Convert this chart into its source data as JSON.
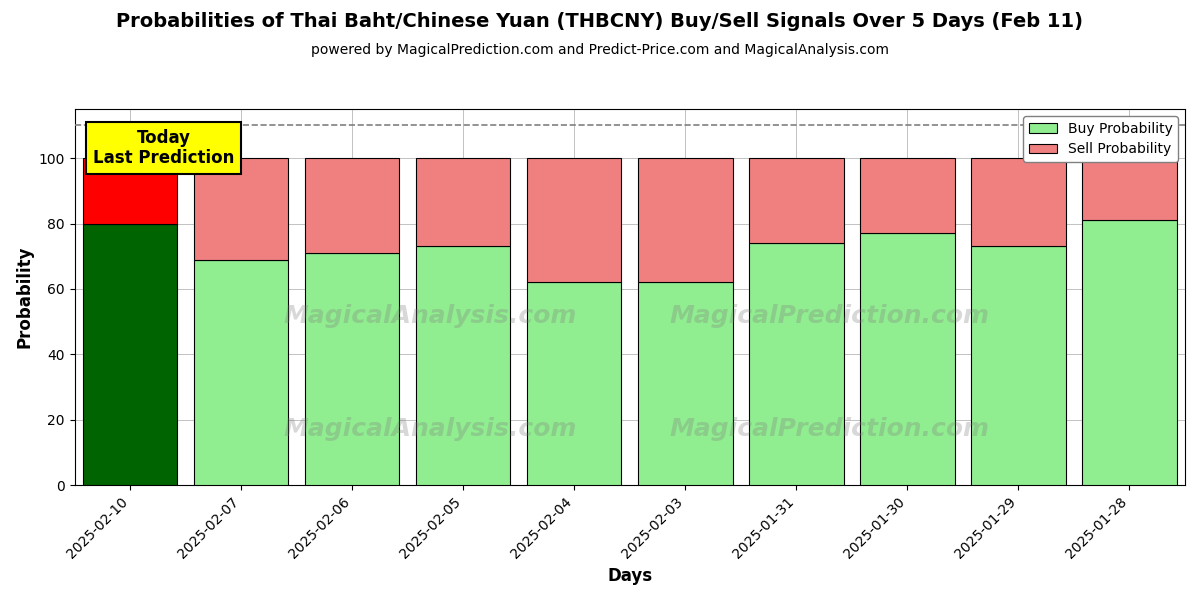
{
  "title": "Probabilities of Thai Baht/Chinese Yuan (THBCNY) Buy/Sell Signals Over 5 Days (Feb 11)",
  "subtitle": "powered by MagicalPrediction.com and Predict-Price.com and MagicalAnalysis.com",
  "xlabel": "Days",
  "ylabel": "Probability",
  "dates": [
    "2025-02-10",
    "2025-02-07",
    "2025-02-06",
    "2025-02-05",
    "2025-02-04",
    "2025-02-03",
    "2025-01-31",
    "2025-01-30",
    "2025-01-29",
    "2025-01-28"
  ],
  "buy_probs": [
    80,
    69,
    71,
    73,
    62,
    62,
    74,
    77,
    73,
    81
  ],
  "sell_probs": [
    20,
    31,
    29,
    27,
    38,
    38,
    26,
    23,
    27,
    19
  ],
  "today_buy_color": "#006400",
  "today_sell_color": "#FF0000",
  "buy_color": "#90EE90",
  "sell_color": "#F08080",
  "today_label_bg": "#FFFF00",
  "annotation_text": "Today\nLast Prediction",
  "ylim": [
    0,
    115
  ],
  "yticks": [
    0,
    20,
    40,
    60,
    80,
    100
  ],
  "dashed_line_y": 110,
  "background_color": "#ffffff",
  "grid_color": "#aaaaaa",
  "bar_width": 0.85,
  "title_fontsize": 14,
  "subtitle_fontsize": 10,
  "tick_fontsize": 10,
  "axis_label_fontsize": 12,
  "legend_fontsize": 10,
  "annotation_fontsize": 12
}
